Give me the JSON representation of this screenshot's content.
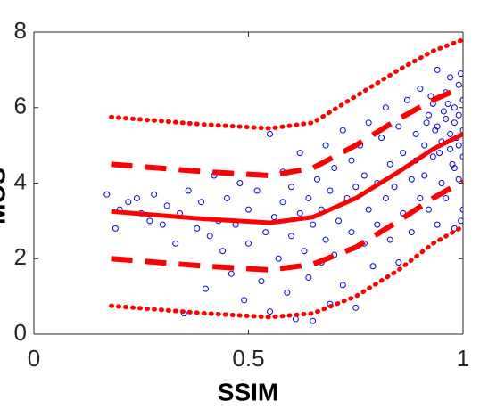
{
  "chart_data": {
    "type": "scatter",
    "x_label": "SSIM",
    "y_label": "MOS",
    "xlim": [
      0,
      1
    ],
    "ylim": [
      0,
      8
    ],
    "xticks": [
      0,
      0.5,
      1
    ],
    "yticks": [
      0,
      2,
      4,
      6,
      8
    ],
    "grid": false,
    "box": true,
    "series": [
      {
        "kind": "scatter",
        "color": "#0000ff",
        "x": [
          0.17,
          0.19,
          0.2,
          0.22,
          0.24,
          0.25,
          0.27,
          0.28,
          0.3,
          0.31,
          0.33,
          0.34,
          0.35,
          0.36,
          0.38,
          0.39,
          0.4,
          0.41,
          0.42,
          0.43,
          0.44,
          0.45,
          0.46,
          0.47,
          0.48,
          0.49,
          0.5,
          0.5,
          0.52,
          0.53,
          0.54,
          0.55,
          0.55,
          0.56,
          0.57,
          0.58,
          0.58,
          0.59,
          0.6,
          0.6,
          0.61,
          0.62,
          0.62,
          0.63,
          0.64,
          0.64,
          0.65,
          0.65,
          0.66,
          0.67,
          0.67,
          0.68,
          0.68,
          0.69,
          0.69,
          0.7,
          0.7,
          0.71,
          0.72,
          0.72,
          0.73,
          0.74,
          0.74,
          0.75,
          0.75,
          0.76,
          0.77,
          0.77,
          0.78,
          0.78,
          0.79,
          0.8,
          0.8,
          0.81,
          0.82,
          0.82,
          0.83,
          0.83,
          0.84,
          0.85,
          0.85,
          0.86,
          0.86,
          0.87,
          0.88,
          0.88,
          0.89,
          0.89,
          0.9,
          0.9,
          0.91,
          0.91,
          0.92,
          0.92,
          0.93,
          0.93,
          0.94,
          0.94,
          0.94,
          0.95,
          0.95,
          0.96,
          0.96,
          0.96,
          0.97,
          0.97,
          0.97,
          0.98,
          0.98,
          0.98,
          0.98,
          0.99,
          0.99,
          0.99,
          0.99,
          1,
          1,
          1,
          1,
          0.995,
          0.995,
          0.985,
          0.975,
          0.965,
          0.955,
          0.945,
          0.935,
          0.925,
          0.915
        ],
        "values": [
          3.7,
          2.8,
          3.3,
          3.5,
          3.6,
          3.2,
          3.0,
          3.7,
          2.9,
          3.4,
          2.4,
          3.2,
          0.55,
          3.8,
          2.8,
          3.5,
          1.2,
          2.6,
          4.2,
          3.0,
          2.2,
          3.6,
          1.6,
          2.9,
          4.0,
          0.9,
          2.4,
          3.3,
          3.8,
          1.4,
          2.7,
          5.3,
          0.6,
          3.1,
          2.0,
          4.3,
          3.5,
          1.1,
          2.6,
          3.9,
          0.4,
          3.2,
          4.8,
          2.2,
          1.5,
          3.6,
          0.35,
          2.9,
          4.1,
          1.9,
          3.3,
          5.0,
          2.5,
          0.8,
          3.8,
          2.1,
          4.4,
          3.0,
          5.4,
          1.3,
          3.6,
          2.7,
          4.6,
          0.7,
          3.9,
          5.0,
          2.4,
          4.2,
          3.3,
          5.6,
          1.8,
          4.0,
          2.9,
          5.2,
          3.6,
          6.0,
          2.5,
          4.5,
          3.9,
          5.5,
          1.9,
          4.8,
          3.2,
          6.2,
          4.1,
          2.7,
          5.3,
          4.6,
          3.6,
          6.5,
          5.0,
          4.2,
          5.8,
          3.3,
          6.1,
          4.7,
          5.5,
          2.9,
          7.0,
          5.1,
          4.0,
          6.4,
          5.7,
          3.6,
          4.9,
          6.8,
          5.3,
          4.4,
          6.0,
          5.6,
          2.8,
          5.0,
          6.6,
          4.1,
          5.8,
          5.4,
          3.3,
          6.2,
          4.7,
          3.0,
          6.9,
          5.2,
          4.5,
          6.1,
          5.9,
          4.8,
          5.4,
          6.3,
          5.6
        ]
      },
      {
        "kind": "line",
        "style": "solid",
        "color": "#ff0000",
        "x": [
          0.18,
          0.4,
          0.55,
          0.65,
          0.75,
          0.85,
          0.93,
          1
        ],
        "values": [
          3.25,
          3.05,
          2.95,
          3.1,
          3.6,
          4.3,
          4.9,
          5.3
        ]
      },
      {
        "kind": "line",
        "style": "dashed",
        "color": "#ff0000",
        "x": [
          0.18,
          0.4,
          0.55,
          0.65,
          0.75,
          0.85,
          0.93,
          1
        ],
        "values": [
          4.5,
          4.3,
          4.2,
          4.4,
          5.0,
          5.7,
          6.2,
          6.55
        ]
      },
      {
        "kind": "line",
        "style": "dashed",
        "color": "#ff0000",
        "x": [
          0.18,
          0.4,
          0.55,
          0.65,
          0.75,
          0.85,
          0.93,
          1
        ],
        "values": [
          2.0,
          1.8,
          1.7,
          1.85,
          2.3,
          3.0,
          3.6,
          4.05
        ]
      },
      {
        "kind": "line",
        "style": "dotted",
        "color": "#ff0000",
        "x": [
          0.18,
          0.4,
          0.55,
          0.65,
          0.75,
          0.85,
          0.93,
          1
        ],
        "values": [
          5.75,
          5.55,
          5.45,
          5.6,
          6.3,
          7.0,
          7.5,
          7.8
        ]
      },
      {
        "kind": "line",
        "style": "dotted",
        "color": "#ff0000",
        "x": [
          0.18,
          0.4,
          0.55,
          0.65,
          0.75,
          0.85,
          0.93,
          1
        ],
        "values": [
          0.75,
          0.55,
          0.45,
          0.55,
          1.0,
          1.7,
          2.4,
          2.85
        ]
      }
    ]
  }
}
